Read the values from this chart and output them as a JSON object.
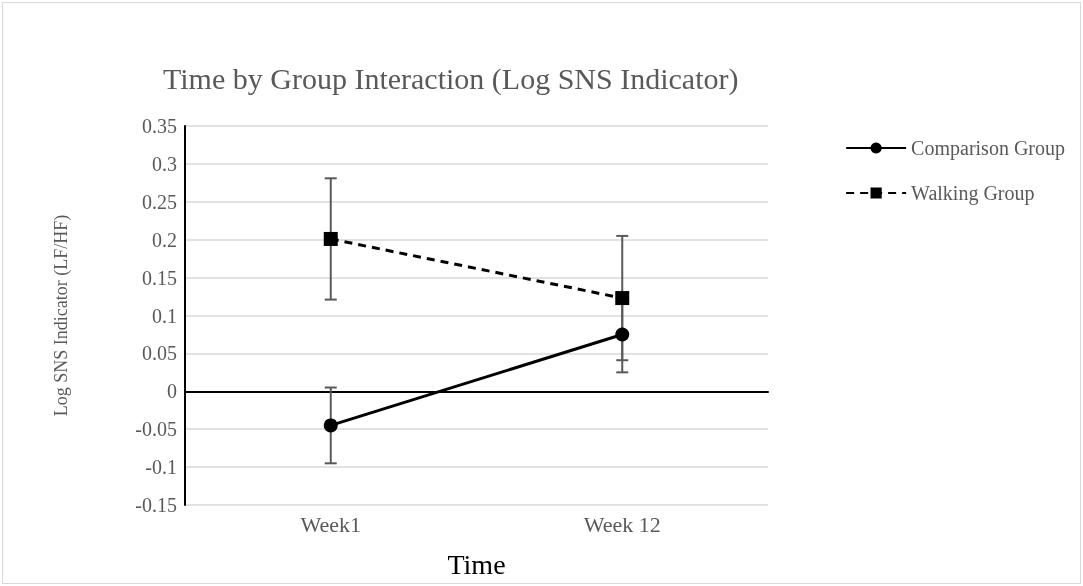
{
  "chart_data": {
    "type": "line",
    "title": "Time by Group Interaction (Log SNS Indicator)",
    "xlabel": "Time",
    "ylabel": "Log SNS Indicator (LF/HF)",
    "categories": [
      "Week1",
      "Week 12"
    ],
    "series": [
      {
        "name": "Comparison Group",
        "color": "#000000",
        "values": [
          -0.045,
          0.075
        ],
        "errors": [
          0.05,
          0.05
        ],
        "marker": "circle",
        "line_style": "solid"
      },
      {
        "name": "Walking Group",
        "color": "#000000",
        "values": [
          0.201,
          0.123
        ],
        "errors": [
          0.08,
          0.082
        ],
        "marker": "square",
        "line_style": "dashed"
      }
    ],
    "ylim": [
      -0.15,
      0.35
    ],
    "yticks": [
      -0.15,
      -0.1,
      -0.05,
      0,
      0.05,
      0.1,
      0.15,
      0.2,
      0.25,
      0.3,
      0.35
    ],
    "grid": "y",
    "legend": "right"
  }
}
